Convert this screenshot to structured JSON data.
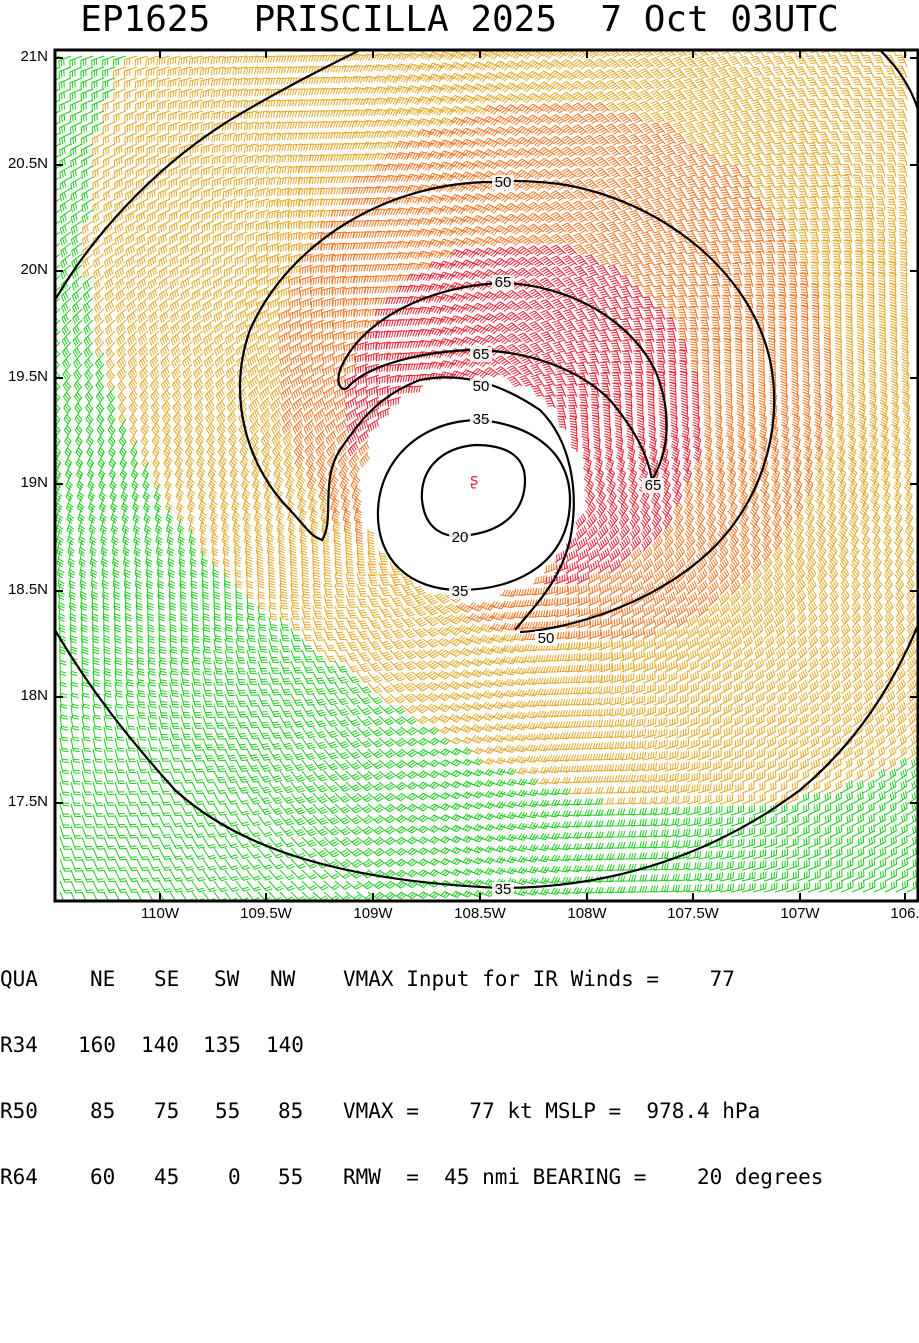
{
  "title": "EP1625  PRISCILLA 2025  7 Oct 03UTC",
  "map": {
    "lat_labels": [
      "21N",
      "20.5N",
      "20N",
      "19.5N",
      "19N",
      "18.5N",
      "18N",
      "17.5N"
    ],
    "lon_labels": [
      "110W",
      "109.5W",
      "109W",
      "108.5W",
      "108W",
      "107.5W",
      "107W",
      "106."
    ],
    "contour_labels": [
      "50",
      "65",
      "65",
      "50",
      "35",
      "20",
      "35",
      "65",
      "50",
      "35"
    ],
    "wind_color_bins": {
      "below_34kt": "#1fcc1f",
      "34_to_49kt": "#e3a92a",
      "50_to_63kt": "#f07a2a",
      "64kt_plus": "#e8283a",
      "calm_core": "#000000"
    },
    "center_symbol_color": "#e8283a"
  },
  "info": {
    "header": [
      "QUA",
      "NE",
      "SE",
      "SW",
      "NW"
    ],
    "r34": [
      "R34",
      "160",
      "140",
      "135",
      "140"
    ],
    "r50": [
      "R50",
      "85",
      "75",
      "55",
      "85"
    ],
    "r64": [
      "R64",
      "60",
      "45",
      "0",
      "55"
    ],
    "vmax_input_text": "VMAX Input for IR Winds =    77",
    "vmax_line": "VMAX =    77 kt MSLP =  978.4 hPa",
    "rmw_line": "RMW  =  45 nmi BEARING =    20 degrees"
  }
}
